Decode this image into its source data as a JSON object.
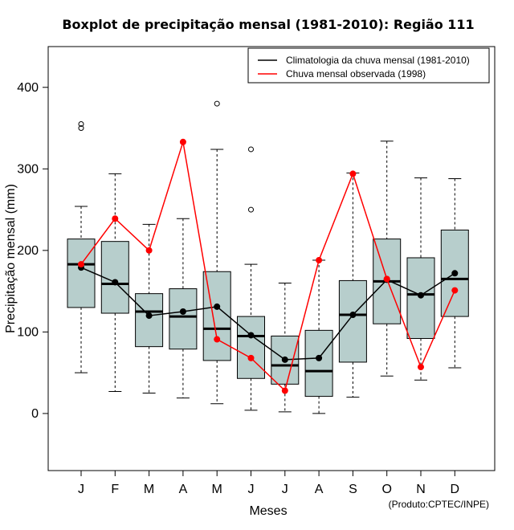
{
  "chart_data": {
    "type": "boxplot",
    "title": "Boxplot de precipitação mensal (1981-2010): Região 111",
    "xlabel": "Meses",
    "ylabel": "Precipitação mensal (mm)",
    "ylim": [
      -70,
      450
    ],
    "yticks": [
      0,
      100,
      200,
      300,
      400
    ],
    "categories": [
      "J",
      "F",
      "M",
      "A",
      "M",
      "J",
      "J",
      "A",
      "S",
      "O",
      "N",
      "D"
    ],
    "boxes": [
      {
        "whisker_low": 50,
        "q1": 130,
        "median": 183,
        "q3": 214,
        "whisker_high": 254,
        "outliers": [
          350,
          355
        ]
      },
      {
        "whisker_low": 27,
        "q1": 123,
        "median": 159,
        "q3": 211,
        "whisker_high": 294,
        "outliers": []
      },
      {
        "whisker_low": 25,
        "q1": 82,
        "median": 125,
        "q3": 147,
        "whisker_high": 232,
        "outliers": []
      },
      {
        "whisker_low": 19,
        "q1": 79,
        "median": 119,
        "q3": 153,
        "whisker_high": 239,
        "outliers": []
      },
      {
        "whisker_low": 12,
        "q1": 65,
        "median": 104,
        "q3": 174,
        "whisker_high": 324,
        "outliers": [
          380
        ]
      },
      {
        "whisker_low": 4,
        "q1": 43,
        "median": 95,
        "q3": 119,
        "whisker_high": 183,
        "outliers": [
          250,
          324
        ]
      },
      {
        "whisker_low": 2,
        "q1": 36,
        "median": 59,
        "q3": 95,
        "whisker_high": 160,
        "outliers": []
      },
      {
        "whisker_low": 0,
        "q1": 21,
        "median": 52,
        "q3": 102,
        "whisker_high": 188,
        "outliers": []
      },
      {
        "whisker_low": 20,
        "q1": 63,
        "median": 121,
        "q3": 163,
        "whisker_high": 295,
        "outliers": []
      },
      {
        "whisker_low": 46,
        "q1": 110,
        "median": 162,
        "q3": 214,
        "whisker_high": 334,
        "outliers": []
      },
      {
        "whisker_low": 41,
        "q1": 92,
        "median": 146,
        "q3": 191,
        "whisker_high": 289,
        "outliers": []
      },
      {
        "whisker_low": 56,
        "q1": 119,
        "median": 165,
        "q3": 225,
        "whisker_high": 288,
        "outliers": []
      }
    ],
    "series": [
      {
        "name": "Climatologia da chuva mensal (1981-2010)",
        "color": "#000000",
        "values": [
          179,
          161,
          120,
          125,
          131,
          96,
          66,
          68,
          121,
          164,
          145,
          172
        ]
      },
      {
        "name": "Chuva mensal observada (1998)",
        "color": "#ff0000",
        "values": [
          183,
          239,
          200,
          333,
          91,
          68,
          28,
          188,
          294,
          165,
          57,
          151
        ]
      }
    ],
    "legend_position": "top-right",
    "box_fill": "#b7cecc",
    "credit": "(Produto:CPTEC/INPE)"
  }
}
